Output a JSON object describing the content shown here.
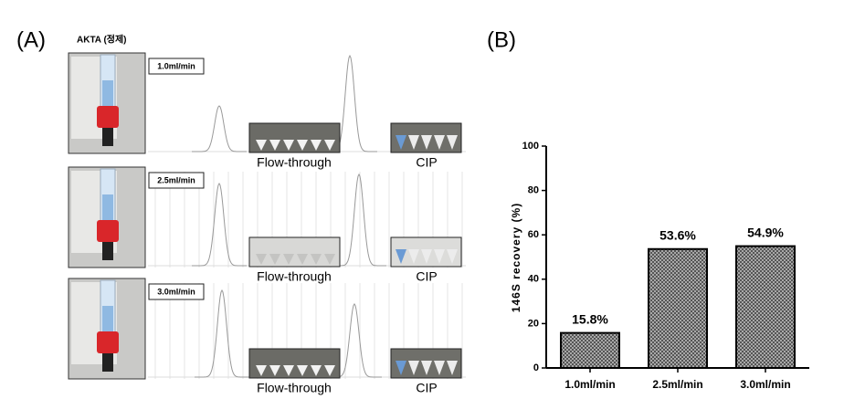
{
  "panel_a": {
    "label": "(A)",
    "title": "AKTA (정제)",
    "rows": [
      {
        "rate": "1.0ml/min",
        "flow_label": "Flow-through",
        "cip_label": "CIP"
      },
      {
        "rate": "2.5ml/min",
        "flow_label": "Flow-through",
        "cip_label": "CIP"
      },
      {
        "rate": "3.0ml/min",
        "flow_label": "Flow-through",
        "cip_label": "CIP"
      }
    ]
  },
  "panel_b": {
    "label": "(B)"
  },
  "chart_data": {
    "type": "bar",
    "ylabel": "146S recovery (%)",
    "categories": [
      "1.0ml/min",
      "2.5ml/min",
      "3.0ml/min"
    ],
    "values": [
      15.8,
      53.6,
      54.9
    ],
    "value_labels": [
      "15.8%",
      "53.6%",
      "54.9%"
    ],
    "color": "#a8a8a8",
    "ylim": [
      0,
      100
    ],
    "yticks": [
      0,
      20,
      40,
      60,
      80,
      100
    ]
  }
}
